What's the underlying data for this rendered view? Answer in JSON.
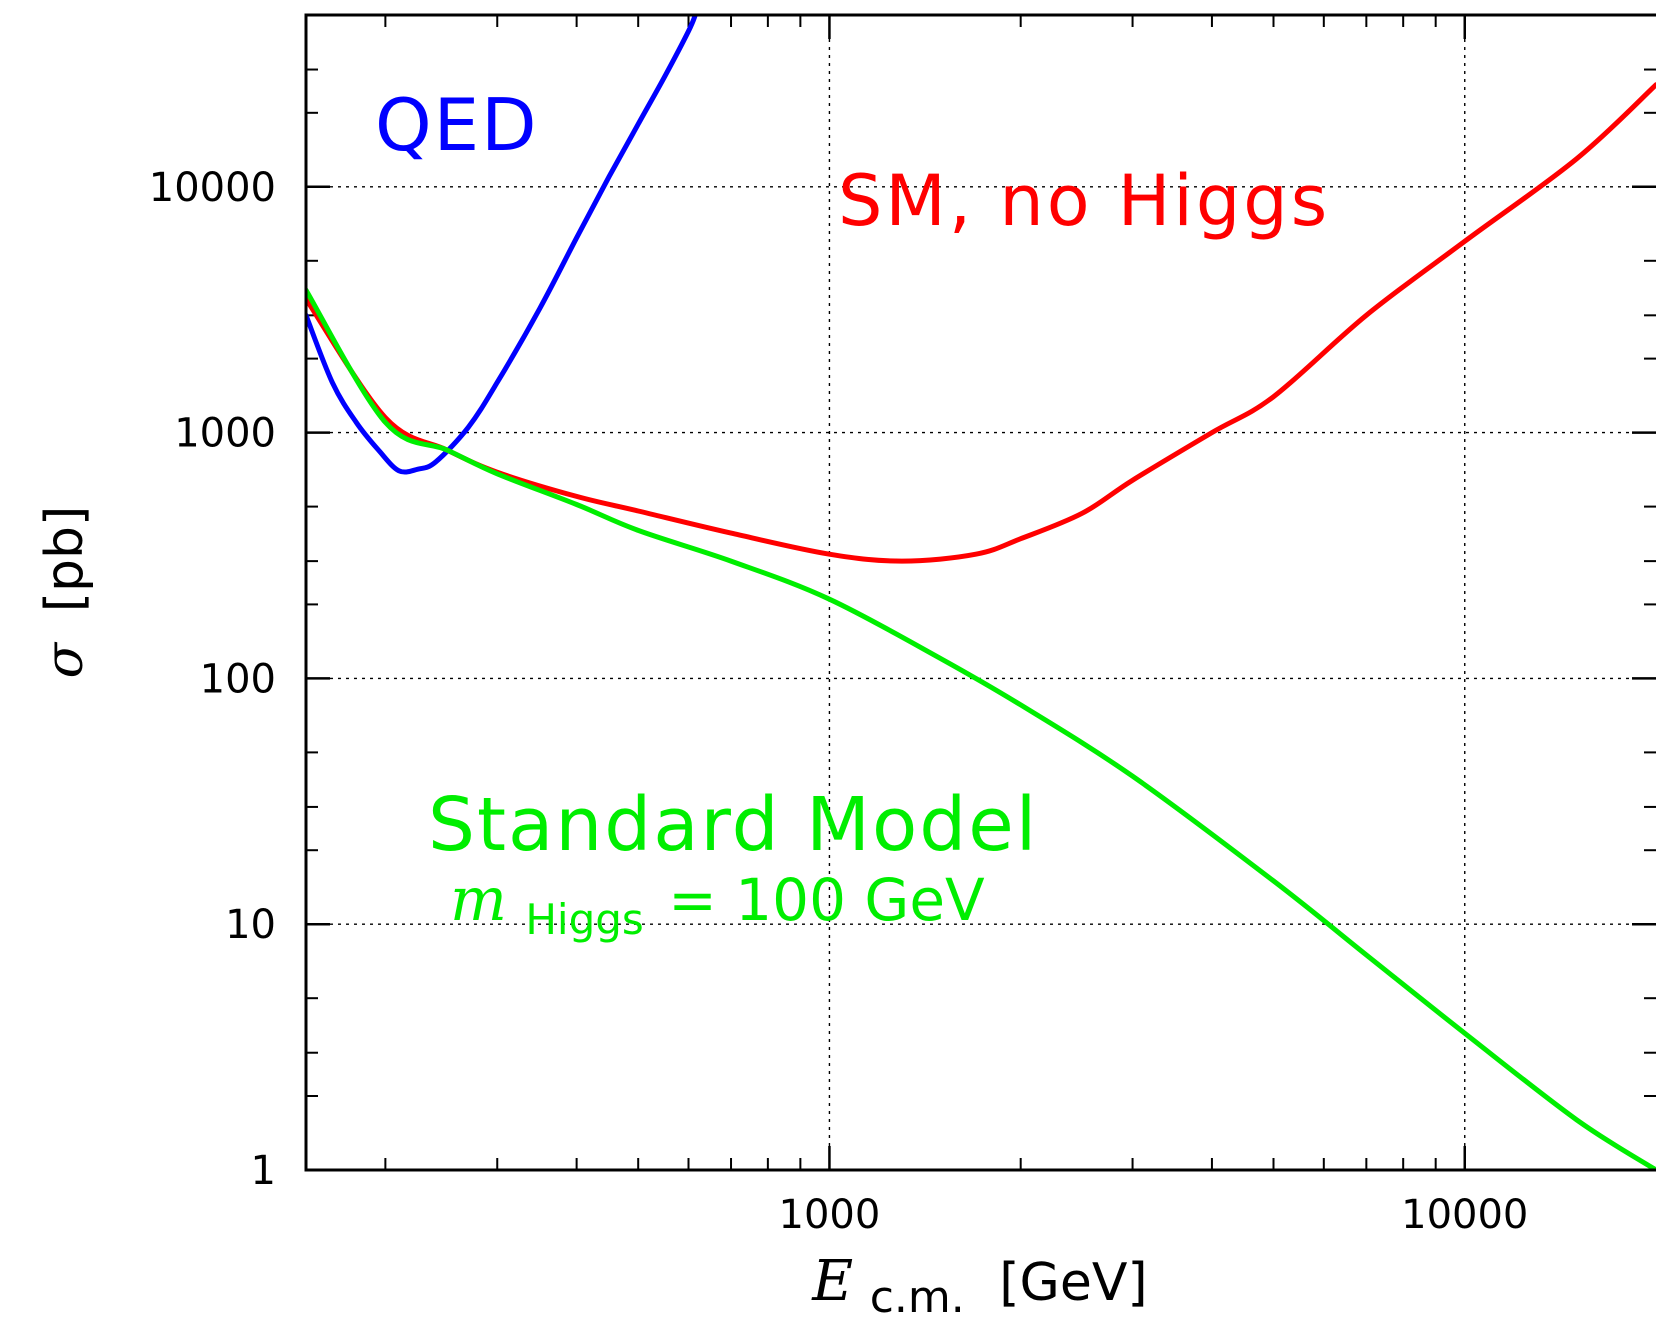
{
  "chart_data": {
    "type": "line",
    "xscale": "log",
    "yscale": "log",
    "xlim": [
      150,
      20000
    ],
    "ylim": [
      1,
      50000
    ],
    "grid": true,
    "x_ticks": [
      1000,
      10000
    ],
    "x_tick_labels": [
      "1000",
      "10000"
    ],
    "y_ticks": [
      1,
      10,
      100,
      1000,
      10000
    ],
    "y_tick_labels": [
      "1",
      "10",
      "100",
      "1000",
      "10000"
    ],
    "xlabel": {
      "symbol": "E",
      "subscript": "c.m.",
      "unit": "[GeV]"
    },
    "ylabel": {
      "symbol": "σ",
      "unit": "[pb]"
    },
    "series": [
      {
        "name": "QED",
        "color": "#0000ff",
        "points": [
          [
            150,
            3000
          ],
          [
            165,
            1600
          ],
          [
            180,
            1100
          ],
          [
            195,
            850
          ],
          [
            210,
            700
          ],
          [
            225,
            710
          ],
          [
            240,
            760
          ],
          [
            270,
            1050
          ],
          [
            300,
            1600
          ],
          [
            350,
            3200
          ],
          [
            400,
            6200
          ],
          [
            450,
            11000
          ],
          [
            500,
            18000
          ],
          [
            550,
            28000
          ],
          [
            600,
            43000
          ],
          [
            615,
            50000
          ]
        ]
      },
      {
        "name": "SM, no Higgs",
        "color": "#ff0000",
        "points": [
          [
            150,
            3500
          ],
          [
            200,
            1150
          ],
          [
            250,
            850
          ],
          [
            300,
            690
          ],
          [
            400,
            550
          ],
          [
            500,
            480
          ],
          [
            700,
            390
          ],
          [
            1000,
            320
          ],
          [
            1300,
            300
          ],
          [
            1700,
            320
          ],
          [
            2000,
            370
          ],
          [
            2500,
            470
          ],
          [
            3000,
            640
          ],
          [
            4000,
            1000
          ],
          [
            5000,
            1400
          ],
          [
            7000,
            3000
          ],
          [
            10000,
            6000
          ],
          [
            15000,
            13000
          ],
          [
            20000,
            26000
          ]
        ]
      },
      {
        "name": "Standard Model",
        "color": "#00ee00",
        "points": [
          [
            150,
            3800
          ],
          [
            200,
            1100
          ],
          [
            250,
            850
          ],
          [
            300,
            680
          ],
          [
            400,
            510
          ],
          [
            500,
            400
          ],
          [
            700,
            300
          ],
          [
            1000,
            210
          ],
          [
            1500,
            120
          ],
          [
            2000,
            78
          ],
          [
            3000,
            40
          ],
          [
            5000,
            15
          ],
          [
            7000,
            7.5
          ],
          [
            10000,
            3.6
          ],
          [
            15000,
            1.6
          ],
          [
            20000,
            1.0
          ]
        ]
      }
    ],
    "annotations": [
      {
        "text": "QED",
        "color": "#0000ff"
      },
      {
        "text": "SM, no Higgs",
        "color": "#ff0000"
      },
      {
        "text": "Standard Model",
        "color": "#00ee00"
      },
      {
        "text_symbol": "m",
        "text_subscript": "Higgs",
        "text_rest": "= 100 GeV",
        "color": "#00ee00"
      }
    ]
  }
}
